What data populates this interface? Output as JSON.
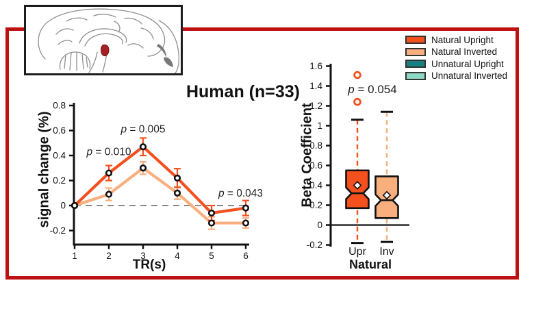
{
  "figure": {
    "title": "Human (n=33)",
    "frame_color": "#BE1111"
  },
  "brain_inset": {
    "description": "sagittal-brain-sketch-with-red-highlighted-nucleus",
    "highlight_color": "#A32024"
  },
  "legend": {
    "items": [
      {
        "label": "Natural Upright",
        "color": "#F4501E"
      },
      {
        "label": "Natural Inverted",
        "color": "#F9AE7D"
      },
      {
        "label": "Unnatural Upright",
        "color": "#1A7F80"
      },
      {
        "label": "Unnatural Inverted",
        "color": "#8DD9C5"
      }
    ]
  },
  "chart_data": [
    {
      "type": "line",
      "title": "Human (n=33)",
      "xlabel": "TR(s)",
      "ylabel": "signal change (%)",
      "x": [
        1,
        2,
        3,
        4,
        5,
        6
      ],
      "xlim": [
        1,
        6
      ],
      "ylim": [
        -0.3,
        0.8
      ],
      "yticks": [
        0.8,
        0.6,
        0.4,
        0.2,
        0,
        -0.2
      ],
      "zero_line": {
        "style": "dashed",
        "color": "#888888",
        "y": 0
      },
      "grid": false,
      "series": [
        {
          "name": "Natural Upright",
          "color": "#F4501E",
          "values": [
            0,
            0.26,
            0.47,
            0.22,
            -0.06,
            -0.02
          ],
          "errors": [
            0,
            0.06,
            0.07,
            0.075,
            0.06,
            0.06
          ]
        },
        {
          "name": "Natural Inverted",
          "color": "#F9AE7D",
          "values": [
            0,
            0.09,
            0.3,
            0.1,
            -0.14,
            -0.14
          ],
          "errors": [
            0,
            0.05,
            0.05,
            0.05,
            0.05,
            0.04
          ]
        }
      ],
      "annotations": [
        {
          "text": "p = 0.010",
          "x": 2,
          "y": 0.43
        },
        {
          "text": "p = 0.005",
          "x": 3,
          "y": 0.61
        },
        {
          "text": "p = 0.043",
          "x": 5.85,
          "y": 0.1
        }
      ]
    },
    {
      "type": "boxplot",
      "xlabel": "Natural",
      "ylabel": "Beta Coefficient",
      "ylim": [
        -0.2,
        1.6
      ],
      "yticks": [
        1.6,
        1.4,
        1.2,
        1,
        0.8,
        0.6,
        0.4,
        0.2,
        0,
        -0.2
      ],
      "annotation": "p = 0.054",
      "boxes": [
        {
          "label": "Upr",
          "color": "#F4501E",
          "q1": 0.17,
          "median": 0.32,
          "q3": 0.55,
          "mean": 0.4,
          "whisker_low": -0.18,
          "whisker_high": 1.06,
          "outliers": [
            1.24,
            1.51
          ],
          "notch": true
        },
        {
          "label": "Inv",
          "color": "#F9AE7D",
          "q1": 0.07,
          "median": 0.25,
          "q3": 0.49,
          "mean": 0.3,
          "whisker_low": -0.17,
          "whisker_high": 1.14,
          "outliers": [],
          "notch": true
        }
      ]
    }
  ]
}
